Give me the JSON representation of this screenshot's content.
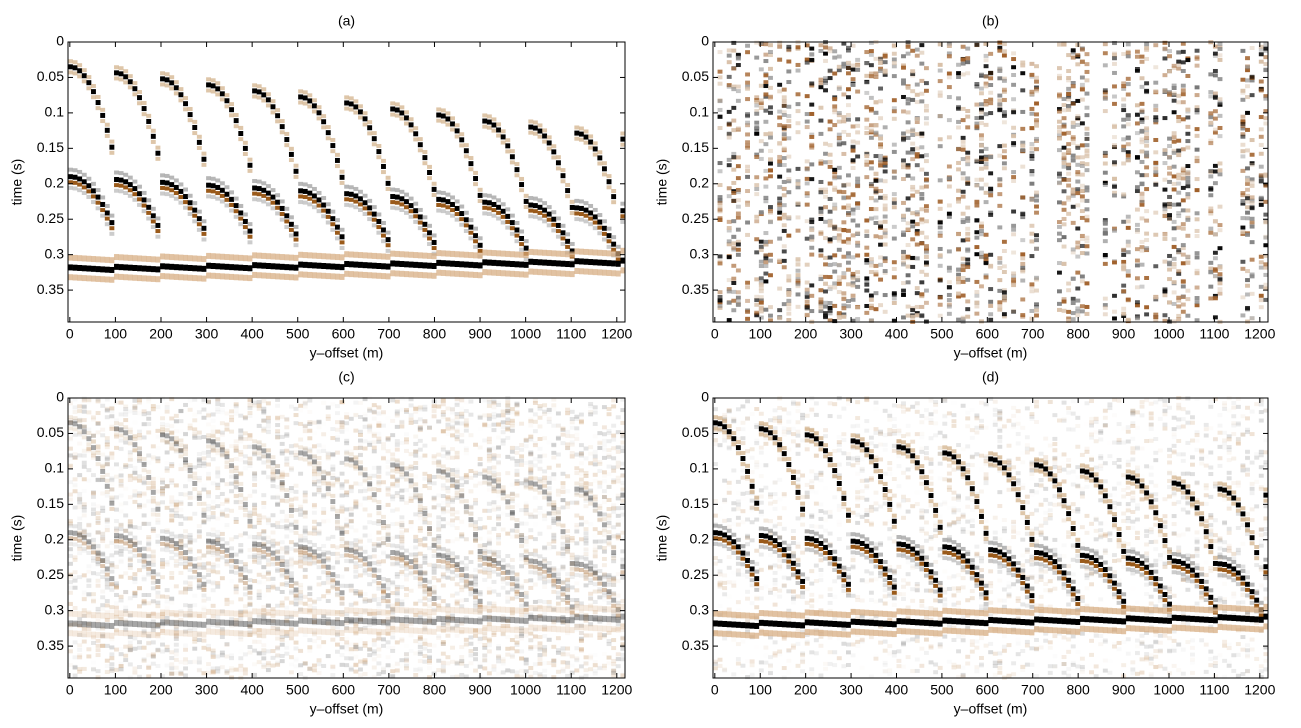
{
  "chart_data": [
    {
      "type": "heatmap",
      "title": "(a)",
      "xlabel": "y–offset (m)",
      "ylabel": "time (s)",
      "xlim": [
        -4,
        1218
      ],
      "ylim": [
        0,
        0.395
      ],
      "xticks": [
        0,
        100,
        200,
        300,
        400,
        500,
        600,
        700,
        800,
        900,
        1000,
        1100,
        1200
      ],
      "yticks": [
        0,
        0.05,
        0.1,
        0.15,
        0.2,
        0.25,
        0.3,
        0.35
      ]
    },
    {
      "type": "heatmap",
      "title": "(b)",
      "xlabel": "y–offset (m)",
      "ylabel": "time (s)",
      "xlim": [
        -4,
        1218
      ],
      "ylim": [
        0,
        0.395
      ],
      "xticks": [
        0,
        100,
        200,
        300,
        400,
        500,
        600,
        700,
        800,
        900,
        1000,
        1100,
        1200
      ],
      "yticks": [
        0,
        0.05,
        0.1,
        0.15,
        0.2,
        0.25,
        0.3,
        0.35
      ]
    },
    {
      "type": "heatmap",
      "title": "(c)",
      "xlabel": "y–offset (m)",
      "ylabel": "time (s)",
      "xlim": [
        -4,
        1218
      ],
      "ylim": [
        0,
        0.395
      ],
      "xticks": [
        0,
        100,
        200,
        300,
        400,
        500,
        600,
        700,
        800,
        900,
        1000,
        1100,
        1200
      ],
      "yticks": [
        0,
        0.05,
        0.1,
        0.15,
        0.2,
        0.25,
        0.3,
        0.35
      ]
    },
    {
      "type": "heatmap",
      "title": "(d)",
      "xlabel": "y–offset (m)",
      "ylabel": "time (s)",
      "xlim": [
        -4,
        1218
      ],
      "ylim": [
        0,
        0.395
      ],
      "xticks": [
        0,
        100,
        200,
        300,
        400,
        500,
        600,
        700,
        800,
        900,
        1000,
        1100,
        1200
      ],
      "yticks": [
        0,
        0.05,
        0.1,
        0.15,
        0.2,
        0.25,
        0.3,
        0.35
      ]
    }
  ]
}
